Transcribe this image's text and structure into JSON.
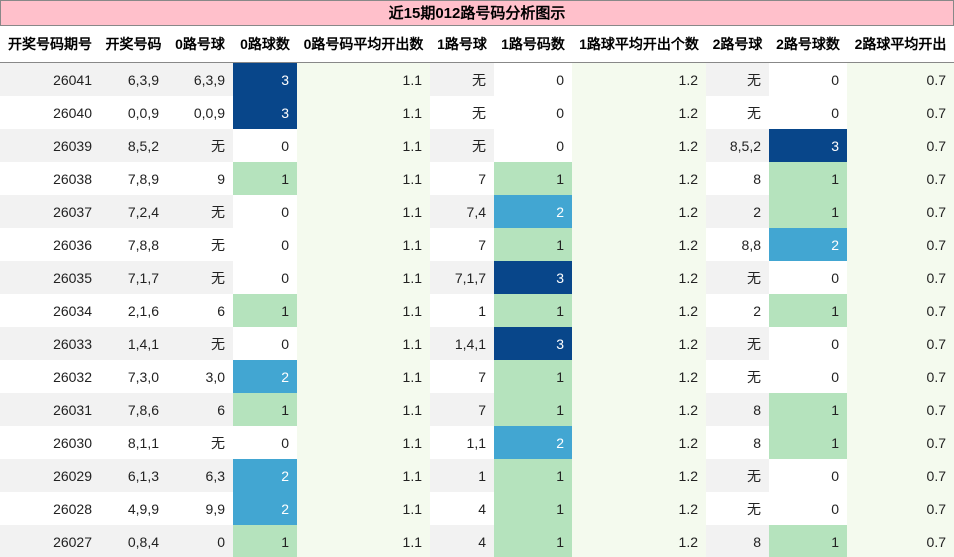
{
  "title": "近15期012路号码分析图示",
  "table": {
    "header": [
      "开奖号码期号",
      "开奖号码",
      "0路号球",
      "0路球数",
      "0路号码平均开出数",
      "1路号球",
      "1路号码数",
      "1路球平均开出个数",
      "2路号球",
      "2路号球数",
      "2路球平均开出"
    ],
    "rows": [
      [
        26041,
        "6,3,9",
        "6,3,9",
        3,
        1.1,
        "无",
        0,
        1.2,
        "无",
        0,
        0.7
      ],
      [
        26040,
        "0,0,9",
        "0,0,9",
        3,
        1.1,
        "无",
        0,
        1.2,
        "无",
        0,
        0.7
      ],
      [
        26039,
        "8,5,2",
        "无",
        0,
        1.1,
        "无",
        0,
        1.2,
        "8,5,2",
        3,
        0.7
      ],
      [
        26038,
        "7,8,9",
        "9",
        1,
        1.1,
        "7",
        1,
        1.2,
        "8",
        1,
        0.7
      ],
      [
        26037,
        "7,2,4",
        "无",
        0,
        1.1,
        "7,4",
        2,
        1.2,
        "2",
        1,
        0.7
      ],
      [
        26036,
        "7,8,8",
        "无",
        0,
        1.1,
        "7",
        1,
        1.2,
        "8,8",
        2,
        0.7
      ],
      [
        26035,
        "7,1,7",
        "无",
        0,
        1.1,
        "7,1,7",
        3,
        1.2,
        "无",
        0,
        0.7
      ],
      [
        26034,
        "2,1,6",
        "6",
        1,
        1.1,
        "1",
        1,
        1.2,
        "2",
        1,
        0.7
      ],
      [
        26033,
        "1,4,1",
        "无",
        0,
        1.1,
        "1,4,1",
        3,
        1.2,
        "无",
        0,
        0.7
      ],
      [
        26032,
        "7,3,0",
        "3,0",
        2,
        1.1,
        "7",
        1,
        1.2,
        "无",
        0,
        0.7
      ],
      [
        26031,
        "7,8,6",
        "6",
        1,
        1.1,
        "7",
        1,
        1.2,
        "8",
        1,
        0.7
      ],
      [
        26030,
        "8,1,1",
        "无",
        0,
        1.1,
        "1,1",
        2,
        1.2,
        "8",
        1,
        0.7
      ],
      [
        26029,
        "6,1,3",
        "6,3",
        2,
        1.1,
        "1",
        1,
        1.2,
        "无",
        0,
        0.7
      ],
      [
        26028,
        "4,9,9",
        "9,9",
        2,
        1.1,
        "4",
        1,
        1.2,
        "无",
        0,
        0.7
      ],
      [
        26027,
        "0,8,4",
        "0",
        1,
        1.1,
        "4",
        1,
        1.2,
        "8",
        1,
        0.7
      ]
    ],
    "cell_colors": {
      "1": "#b5e3bd",
      "2": "#42a6d2",
      "3": "#08468a"
    }
  }
}
